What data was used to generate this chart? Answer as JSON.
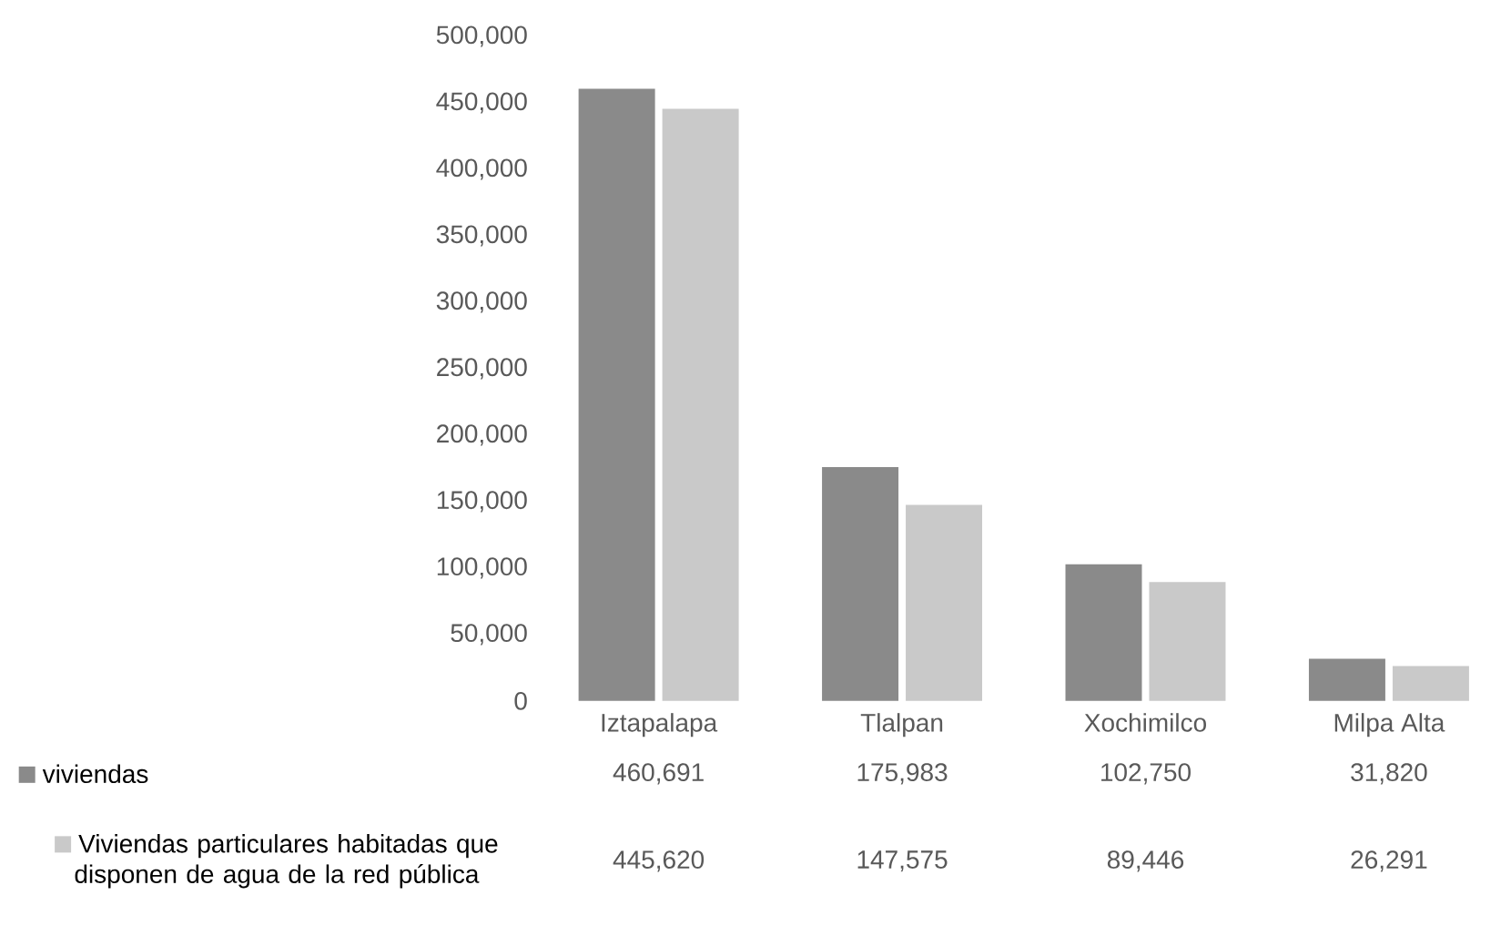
{
  "chart_data": {
    "type": "bar",
    "categories": [
      "Iztapalapa",
      "Tlalpan",
      "Xochimilco",
      "Milpa Alta"
    ],
    "series": [
      {
        "name": "viviendas",
        "color": "#8a8a8a",
        "values": [
          460691,
          175983,
          102750,
          31820
        ],
        "value_labels": [
          "460,691",
          "175,983",
          "102,750",
          "31,820"
        ]
      },
      {
        "name": "Viviendas particulares habitadas que disponen de agua de la red pública",
        "color": "#c9c9c9",
        "values": [
          445620,
          147575,
          89446,
          26291
        ],
        "value_labels": [
          "445,620",
          "147,575",
          "89,446",
          "26,291"
        ]
      }
    ],
    "ylim": [
      0,
      500000
    ],
    "yticks": [
      {
        "value": 0,
        "label": "0"
      },
      {
        "value": 50000,
        "label": "50,000"
      },
      {
        "value": 100000,
        "label": "100,000"
      },
      {
        "value": 150000,
        "label": "150,000"
      },
      {
        "value": 200000,
        "label": "200,000"
      },
      {
        "value": 250000,
        "label": "250,000"
      },
      {
        "value": 300000,
        "label": "300,000"
      },
      {
        "value": 350000,
        "label": "350,000"
      },
      {
        "value": 400000,
        "label": "400,000"
      },
      {
        "value": 450000,
        "label": "450,000"
      },
      {
        "value": 500000,
        "label": "500,000"
      }
    ],
    "legend": "bottom"
  }
}
